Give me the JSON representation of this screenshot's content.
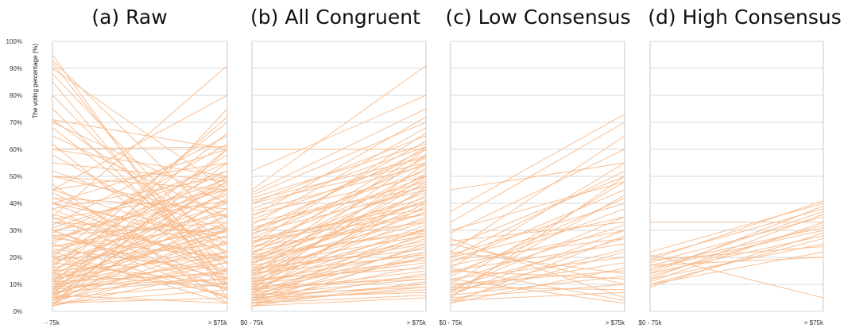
{
  "chart_data": [
    {
      "type": "line",
      "title": "(a) Raw",
      "xlabel": "",
      "ylabel": "The voting percentage (%)",
      "categories": [
        "- 75k",
        "> $75k"
      ],
      "yticks": [
        "0%",
        "10%",
        "20%",
        "30%",
        "40%",
        "50%",
        "60%",
        "70%",
        "80%",
        "90%",
        "100%"
      ],
      "ylim": [
        0,
        100
      ],
      "series_color": "#f7b98a",
      "lines": [
        [
          95,
          5
        ],
        [
          93,
          30
        ],
        [
          92,
          10
        ],
        [
          90,
          45
        ],
        [
          88,
          20
        ],
        [
          85,
          8
        ],
        [
          80,
          15
        ],
        [
          75,
          12
        ],
        [
          71,
          60
        ],
        [
          71,
          25
        ],
        [
          70,
          40
        ],
        [
          68,
          18
        ],
        [
          65,
          35
        ],
        [
          62,
          10
        ],
        [
          60,
          50
        ],
        [
          60,
          61
        ],
        [
          58,
          22
        ],
        [
          55,
          48
        ],
        [
          52,
          30
        ],
        [
          50,
          45
        ],
        [
          47,
          3
        ],
        [
          45,
          80
        ],
        [
          45,
          55
        ],
        [
          44,
          12
        ],
        [
          42,
          38
        ],
        [
          40,
          60
        ],
        [
          40,
          27
        ],
        [
          38,
          50
        ],
        [
          36,
          18
        ],
        [
          35,
          91
        ],
        [
          34,
          45
        ],
        [
          33,
          29
        ],
        [
          32,
          65
        ],
        [
          30,
          41
        ],
        [
          30,
          8
        ],
        [
          29,
          55
        ],
        [
          28,
          33
        ],
        [
          27,
          20
        ],
        [
          26,
          49
        ],
        [
          25,
          62
        ],
        [
          24,
          36
        ],
        [
          23,
          15
        ],
        [
          22,
          43
        ],
        [
          21,
          52
        ],
        [
          20,
          30
        ],
        [
          20,
          70
        ],
        [
          19,
          25
        ],
        [
          18,
          40
        ],
        [
          18,
          10
        ],
        [
          17,
          58
        ],
        [
          16,
          32
        ],
        [
          15,
          47
        ],
        [
          15,
          20
        ],
        [
          14,
          66
        ],
        [
          14,
          38
        ],
        [
          13,
          28
        ],
        [
          13,
          50
        ],
        [
          12,
          22
        ],
        [
          12,
          44
        ],
        [
          11,
          35
        ],
        [
          11,
          60
        ],
        [
          10,
          18
        ],
        [
          10,
          30
        ],
        [
          10,
          48
        ],
        [
          9,
          25
        ],
        [
          9,
          41
        ],
        [
          8,
          15
        ],
        [
          8,
          55
        ],
        [
          8,
          33
        ],
        [
          7,
          20
        ],
        [
          7,
          45
        ],
        [
          7,
          12
        ],
        [
          6,
          28
        ],
        [
          6,
          38
        ],
        [
          6,
          75
        ],
        [
          5,
          22
        ],
        [
          5,
          50
        ],
        [
          5,
          10
        ],
        [
          4,
          30
        ],
        [
          4,
          42
        ],
        [
          4,
          18
        ],
        [
          3,
          26
        ],
        [
          3,
          36
        ],
        [
          3,
          8
        ],
        [
          2,
          15
        ],
        [
          2,
          60
        ],
        [
          2,
          20
        ],
        [
          30,
          5
        ],
        [
          40,
          15
        ],
        [
          45,
          25
        ],
        [
          35,
          8
        ],
        [
          25,
          5
        ],
        [
          28,
          12
        ],
        [
          20,
          6
        ],
        [
          33,
          20
        ],
        [
          22,
          3
        ],
        [
          50,
          35
        ],
        [
          42,
          22
        ],
        [
          38,
          10
        ],
        [
          27,
          45
        ],
        [
          16,
          72
        ],
        [
          19,
          48
        ],
        [
          24,
          31
        ],
        [
          31,
          52
        ],
        [
          11,
          14
        ],
        [
          14,
          9
        ],
        [
          9,
          12
        ],
        [
          6,
          3
        ],
        [
          3,
          5
        ],
        [
          12,
          30
        ]
      ]
    },
    {
      "type": "line",
      "title": "(b) All Congruent",
      "xlabel": "",
      "ylabel": "",
      "categories": [
        "$0 - 75k",
        "> $75k"
      ],
      "ylim": [
        0,
        100
      ],
      "series_color": "#f7b98a",
      "lines": [
        [
          60,
          60
        ],
        [
          52,
          80
        ],
        [
          45,
          91
        ],
        [
          44,
          75
        ],
        [
          43,
          70
        ],
        [
          42,
          62
        ],
        [
          40,
          65
        ],
        [
          40,
          55
        ],
        [
          38,
          61
        ],
        [
          36,
          50
        ],
        [
          35,
          72
        ],
        [
          34,
          58
        ],
        [
          32,
          68
        ],
        [
          31,
          48
        ],
        [
          30,
          60
        ],
        [
          30,
          52
        ],
        [
          29,
          45
        ],
        [
          28,
          63
        ],
        [
          27,
          55
        ],
        [
          26,
          40
        ],
        [
          25,
          50
        ],
        [
          25,
          66
        ],
        [
          24,
          42
        ],
        [
          23,
          57
        ],
        [
          22,
          47
        ],
        [
          22,
          36
        ],
        [
          21,
          61
        ],
        [
          20,
          44
        ],
        [
          20,
          30
        ],
        [
          19,
          53
        ],
        [
          18,
          38
        ],
        [
          18,
          49
        ],
        [
          17,
          28
        ],
        [
          17,
          60
        ],
        [
          16,
          41
        ],
        [
          15,
          33
        ],
        [
          15,
          51
        ],
        [
          14,
          45
        ],
        [
          14,
          25
        ],
        [
          13,
          37
        ],
        [
          13,
          58
        ],
        [
          12,
          30
        ],
        [
          12,
          48
        ],
        [
          11,
          22
        ],
        [
          11,
          40
        ],
        [
          10,
          35
        ],
        [
          10,
          50
        ],
        [
          10,
          18
        ],
        [
          9,
          28
        ],
        [
          9,
          43
        ],
        [
          8,
          20
        ],
        [
          8,
          32
        ],
        [
          8,
          55
        ],
        [
          7,
          15
        ],
        [
          7,
          27
        ],
        [
          7,
          39
        ],
        [
          6,
          12
        ],
        [
          6,
          24
        ],
        [
          6,
          46
        ],
        [
          5,
          10
        ],
        [
          5,
          20
        ],
        [
          5,
          31
        ],
        [
          4,
          8
        ],
        [
          4,
          17
        ],
        [
          4,
          29
        ],
        [
          3,
          6
        ],
        [
          3,
          14
        ],
        [
          3,
          25
        ],
        [
          2,
          5
        ],
        [
          2,
          11
        ],
        [
          2,
          22
        ],
        [
          12,
          16
        ],
        [
          9,
          12
        ],
        [
          6,
          9
        ],
        [
          15,
          26
        ],
        [
          18,
          34
        ],
        [
          21,
          29
        ],
        [
          24,
          33
        ],
        [
          27,
          38
        ],
        [
          33,
          46
        ],
        [
          37,
          54
        ],
        [
          41,
          57
        ],
        [
          19,
          41
        ],
        [
          16,
          23
        ],
        [
          11,
          19
        ],
        [
          8,
          13
        ],
        [
          5,
          7
        ],
        [
          3,
          9
        ],
        [
          14,
          21
        ],
        [
          26,
          36
        ]
      ]
    },
    {
      "type": "line",
      "title": "(c) Low Consensus",
      "xlabel": "",
      "ylabel": "",
      "categories": [
        "$0 - 75k",
        "> $75k"
      ],
      "ylim": [
        0,
        100
      ],
      "series_color": "#f7b98a",
      "lines": [
        [
          45,
          55
        ],
        [
          37,
          73
        ],
        [
          33,
          70
        ],
        [
          30,
          48
        ],
        [
          29,
          60
        ],
        [
          27,
          5
        ],
        [
          25,
          10
        ],
        [
          24,
          50
        ],
        [
          22,
          65
        ],
        [
          21,
          40
        ],
        [
          20,
          35
        ],
        [
          20,
          52
        ],
        [
          18,
          45
        ],
        [
          17,
          30
        ],
        [
          16,
          55
        ],
        [
          15,
          25
        ],
        [
          15,
          12
        ],
        [
          14,
          38
        ],
        [
          13,
          42
        ],
        [
          12,
          20
        ],
        [
          12,
          3
        ],
        [
          11,
          32
        ],
        [
          10,
          48
        ],
        [
          10,
          15
        ],
        [
          9,
          27
        ],
        [
          9,
          8
        ],
        [
          8,
          35
        ],
        [
          8,
          18
        ],
        [
          7,
          23
        ],
        [
          7,
          43
        ],
        [
          6,
          13
        ],
        [
          6,
          30
        ],
        [
          5,
          10
        ],
        [
          5,
          50
        ],
        [
          4,
          22
        ],
        [
          4,
          7
        ],
        [
          3,
          28
        ],
        [
          3,
          16
        ],
        [
          16,
          4
        ],
        [
          22,
          14
        ],
        [
          26,
          33
        ],
        [
          19,
          27
        ]
      ]
    },
    {
      "type": "line",
      "title": "(d) High Consensus",
      "xlabel": "",
      "ylabel": "",
      "categories": [
        "$0 - 75k",
        "> $75k"
      ],
      "ylim": [
        0,
        100
      ],
      "series_color": "#f7b98a",
      "lines": [
        [
          33,
          33
        ],
        [
          22,
          40
        ],
        [
          21,
          5
        ],
        [
          20,
          38
        ],
        [
          19,
          41
        ],
        [
          18,
          35
        ],
        [
          17,
          31
        ],
        [
          16,
          30
        ],
        [
          15,
          37
        ],
        [
          14,
          28
        ],
        [
          13,
          32
        ],
        [
          12,
          25
        ],
        [
          11,
          33
        ],
        [
          10,
          27
        ],
        [
          10,
          22
        ],
        [
          9,
          29
        ],
        [
          17,
          20
        ],
        [
          14,
          39
        ],
        [
          12,
          36
        ],
        [
          19,
          24
        ]
      ]
    }
  ]
}
